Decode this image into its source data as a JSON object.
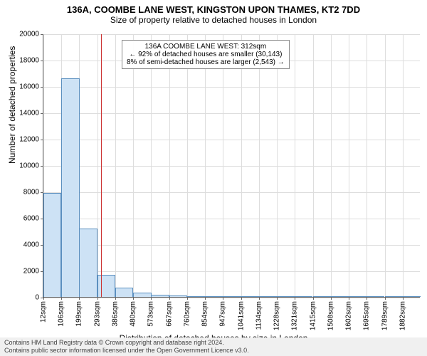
{
  "title": "136A, COOMBE LANE WEST, KINGSTON UPON THAMES, KT2 7DD",
  "subtitle": "Size of property relative to detached houses in London",
  "ylabel": "Number of detached properties",
  "xlabel": "Distribution of detached houses by size in London",
  "chart": {
    "type": "histogram",
    "background_color": "#ffffff",
    "grid_color": "#dddddd",
    "axis_color": "#666666",
    "ylim": [
      0,
      20000
    ],
    "ytick_step": 2000,
    "yticks": [
      0,
      2000,
      4000,
      6000,
      8000,
      10000,
      12000,
      14000,
      16000,
      18000,
      20000
    ],
    "xticks": [
      "12sqm",
      "106sqm",
      "199sqm",
      "293sqm",
      "386sqm",
      "480sqm",
      "573sqm",
      "667sqm",
      "760sqm",
      "854sqm",
      "947sqm",
      "1041sqm",
      "1134sqm",
      "1228sqm",
      "1321sqm",
      "1415sqm",
      "1508sqm",
      "1602sqm",
      "1695sqm",
      "1789sqm",
      "1882sqm"
    ],
    "xrange": [
      12,
      1976
    ],
    "bar_color": "#cde2f5",
    "bar_border": "#5b8fbf",
    "bar_width_sqm": 93.6,
    "bars": [
      {
        "x": 12,
        "y": 7900
      },
      {
        "x": 106,
        "y": 16600
      },
      {
        "x": 199,
        "y": 5200
      },
      {
        "x": 293,
        "y": 1650
      },
      {
        "x": 386,
        "y": 700
      },
      {
        "x": 480,
        "y": 350
      },
      {
        "x": 573,
        "y": 180
      },
      {
        "x": 667,
        "y": 120
      },
      {
        "x": 760,
        "y": 80
      },
      {
        "x": 854,
        "y": 60
      },
      {
        "x": 947,
        "y": 40
      },
      {
        "x": 1041,
        "y": 30
      },
      {
        "x": 1134,
        "y": 25
      },
      {
        "x": 1228,
        "y": 20
      },
      {
        "x": 1321,
        "y": 15
      },
      {
        "x": 1415,
        "y": 12
      },
      {
        "x": 1508,
        "y": 10
      },
      {
        "x": 1602,
        "y": 8
      },
      {
        "x": 1695,
        "y": 6
      },
      {
        "x": 1789,
        "y": 5
      },
      {
        "x": 1882,
        "y": 4
      }
    ],
    "ref_line": {
      "x_sqm": 312,
      "color": "#cc3333"
    },
    "annotation": {
      "line1": "136A COOMBE LANE WEST: 312sqm",
      "line2": "← 92% of detached houses are smaller (30,143)",
      "line3": "8% of semi-detached houses are larger (2,543) →",
      "border_color": "#888888",
      "bg_color": "#ffffff"
    }
  },
  "footer": {
    "line1": "Contains HM Land Registry data © Crown copyright and database right 2024.",
    "line2": "Contains public sector information licensed under the Open Government Licence v3.0."
  },
  "fonts": {
    "title_size": 13,
    "subtitle_size": 12,
    "tick_size": 10,
    "label_size": 12,
    "anno_size": 10
  }
}
